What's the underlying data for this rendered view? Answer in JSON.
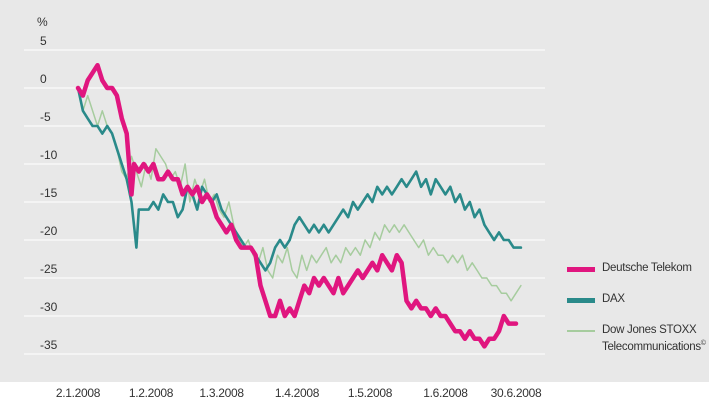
{
  "chart_data": {
    "type": "line",
    "ylabel": "%",
    "ylim": [
      -36,
      6
    ],
    "y_ticks": [
      5,
      0,
      -5,
      -10,
      -15,
      -20,
      -25,
      -30,
      -35
    ],
    "x_tick_labels": [
      "2.1.2008",
      "1.2.2008",
      "1.3.2008",
      "1.4.2008",
      "1.5.2008",
      "1.6.2008",
      "30.6.2008"
    ],
    "x_tick_days": [
      0,
      30,
      59,
      90,
      120,
      151,
      180
    ],
    "grid": true,
    "legend_position": "right",
    "series": [
      {
        "name": "Dow Jones STOXX Telecommunications",
        "label_superscript": "©",
        "color": "#a6cc9e",
        "values": [
          [
            0,
            0
          ],
          [
            2,
            -3
          ],
          [
            4,
            -1
          ],
          [
            6,
            -3
          ],
          [
            8,
            -5
          ],
          [
            10,
            -3
          ],
          [
            12,
            -5
          ],
          [
            14,
            -6
          ],
          [
            16,
            -8
          ],
          [
            18,
            -11
          ],
          [
            20,
            -12
          ],
          [
            22,
            -9
          ],
          [
            24,
            -11
          ],
          [
            26,
            -13
          ],
          [
            28,
            -10
          ],
          [
            30,
            -12
          ],
          [
            32,
            -8
          ],
          [
            34,
            -9
          ],
          [
            36,
            -10
          ],
          [
            38,
            -12
          ],
          [
            40,
            -11
          ],
          [
            42,
            -13
          ],
          [
            44,
            -10
          ],
          [
            46,
            -15
          ],
          [
            48,
            -12
          ],
          [
            50,
            -14
          ],
          [
            52,
            -12
          ],
          [
            54,
            -15
          ],
          [
            56,
            -14
          ],
          [
            58,
            -16
          ],
          [
            60,
            -17
          ],
          [
            62,
            -15
          ],
          [
            64,
            -18
          ],
          [
            66,
            -20
          ],
          [
            68,
            -21
          ],
          [
            70,
            -20
          ],
          [
            72,
            -22
          ],
          [
            74,
            -23
          ],
          [
            76,
            -21
          ],
          [
            78,
            -24
          ],
          [
            80,
            -25
          ],
          [
            82,
            -22
          ],
          [
            84,
            -23
          ],
          [
            86,
            -21
          ],
          [
            88,
            -24
          ],
          [
            90,
            -25
          ],
          [
            92,
            -22
          ],
          [
            94,
            -24
          ],
          [
            96,
            -22
          ],
          [
            98,
            -23
          ],
          [
            100,
            -22
          ],
          [
            102,
            -21
          ],
          [
            104,
            -23
          ],
          [
            106,
            -22
          ],
          [
            108,
            -23
          ],
          [
            110,
            -21
          ],
          [
            112,
            -22
          ],
          [
            114,
            -21
          ],
          [
            116,
            -22
          ],
          [
            118,
            -20
          ],
          [
            120,
            -21
          ],
          [
            122,
            -19
          ],
          [
            124,
            -20
          ],
          [
            126,
            -18
          ],
          [
            128,
            -19
          ],
          [
            130,
            -18
          ],
          [
            132,
            -19
          ],
          [
            134,
            -18
          ],
          [
            136,
            -19
          ],
          [
            138,
            -20
          ],
          [
            140,
            -21
          ],
          [
            142,
            -20
          ],
          [
            144,
            -22
          ],
          [
            146,
            -21
          ],
          [
            148,
            -22
          ],
          [
            150,
            -22
          ],
          [
            152,
            -23
          ],
          [
            154,
            -22
          ],
          [
            156,
            -23
          ],
          [
            158,
            -22
          ],
          [
            160,
            -24
          ],
          [
            162,
            -23
          ],
          [
            164,
            -24
          ],
          [
            166,
            -25
          ],
          [
            168,
            -25
          ],
          [
            170,
            -26
          ],
          [
            172,
            -26
          ],
          [
            174,
            -27
          ],
          [
            176,
            -27
          ],
          [
            178,
            -28
          ],
          [
            180,
            -27
          ],
          [
            182,
            -26
          ]
        ]
      },
      {
        "name": "DAX",
        "color": "#2a8a8a",
        "values": [
          [
            0,
            0
          ],
          [
            2,
            -3
          ],
          [
            4,
            -4
          ],
          [
            6,
            -5
          ],
          [
            8,
            -5
          ],
          [
            10,
            -6
          ],
          [
            12,
            -5
          ],
          [
            14,
            -6
          ],
          [
            16,
            -8
          ],
          [
            18,
            -10
          ],
          [
            20,
            -12
          ],
          [
            22,
            -15
          ],
          [
            24,
            -21
          ],
          [
            25,
            -16
          ],
          [
            27,
            -16
          ],
          [
            29,
            -16
          ],
          [
            31,
            -15
          ],
          [
            33,
            -16
          ],
          [
            35,
            -14
          ],
          [
            37,
            -15
          ],
          [
            39,
            -15
          ],
          [
            41,
            -17
          ],
          [
            43,
            -16
          ],
          [
            45,
            -13
          ],
          [
            47,
            -14
          ],
          [
            49,
            -16
          ],
          [
            51,
            -13
          ],
          [
            53,
            -14
          ],
          [
            55,
            -15
          ],
          [
            57,
            -14
          ],
          [
            59,
            -16
          ],
          [
            61,
            -17
          ],
          [
            63,
            -18
          ],
          [
            65,
            -19
          ],
          [
            67,
            -20
          ],
          [
            69,
            -21
          ],
          [
            71,
            -21
          ],
          [
            73,
            -22
          ],
          [
            75,
            -23
          ],
          [
            77,
            -24
          ],
          [
            79,
            -23
          ],
          [
            81,
            -21
          ],
          [
            83,
            -20
          ],
          [
            85,
            -21
          ],
          [
            87,
            -20
          ],
          [
            89,
            -18
          ],
          [
            91,
            -17
          ],
          [
            93,
            -18
          ],
          [
            95,
            -19
          ],
          [
            97,
            -18
          ],
          [
            99,
            -19
          ],
          [
            101,
            -18
          ],
          [
            103,
            -19
          ],
          [
            105,
            -18
          ],
          [
            107,
            -17
          ],
          [
            109,
            -16
          ],
          [
            111,
            -17
          ],
          [
            113,
            -15
          ],
          [
            115,
            -16
          ],
          [
            117,
            -15
          ],
          [
            119,
            -14
          ],
          [
            121,
            -15
          ],
          [
            123,
            -13
          ],
          [
            125,
            -14
          ],
          [
            127,
            -13
          ],
          [
            129,
            -14
          ],
          [
            131,
            -13
          ],
          [
            133,
            -12
          ],
          [
            135,
            -13
          ],
          [
            137,
            -12
          ],
          [
            139,
            -11
          ],
          [
            141,
            -13
          ],
          [
            143,
            -12
          ],
          [
            145,
            -14
          ],
          [
            147,
            -12
          ],
          [
            149,
            -13
          ],
          [
            151,
            -14
          ],
          [
            153,
            -13
          ],
          [
            155,
            -15
          ],
          [
            157,
            -14
          ],
          [
            159,
            -16
          ],
          [
            161,
            -15
          ],
          [
            163,
            -17
          ],
          [
            165,
            -16
          ],
          [
            167,
            -18
          ],
          [
            169,
            -19
          ],
          [
            171,
            -20
          ],
          [
            173,
            -19
          ],
          [
            175,
            -20
          ],
          [
            177,
            -20
          ],
          [
            179,
            -21
          ],
          [
            182,
            -21
          ]
        ]
      },
      {
        "name": "Deutsche Telekom",
        "color": "#e0167f",
        "values": [
          [
            0,
            0
          ],
          [
            2,
            -1
          ],
          [
            4,
            1
          ],
          [
            6,
            2
          ],
          [
            8,
            3
          ],
          [
            10,
            1
          ],
          [
            12,
            0
          ],
          [
            14,
            0
          ],
          [
            16,
            -1
          ],
          [
            18,
            -4
          ],
          [
            20,
            -6
          ],
          [
            22,
            -14
          ],
          [
            23,
            -10
          ],
          [
            25,
            -11
          ],
          [
            27,
            -10
          ],
          [
            29,
            -11
          ],
          [
            31,
            -10
          ],
          [
            33,
            -12
          ],
          [
            35,
            -12
          ],
          [
            37,
            -11
          ],
          [
            39,
            -12
          ],
          [
            41,
            -12
          ],
          [
            43,
            -14
          ],
          [
            45,
            -13
          ],
          [
            47,
            -14
          ],
          [
            49,
            -13
          ],
          [
            51,
            -15
          ],
          [
            53,
            -14
          ],
          [
            55,
            -15
          ],
          [
            57,
            -17
          ],
          [
            59,
            -18
          ],
          [
            61,
            -19
          ],
          [
            63,
            -18
          ],
          [
            65,
            -20
          ],
          [
            67,
            -21
          ],
          [
            69,
            -21
          ],
          [
            71,
            -21
          ],
          [
            73,
            -22
          ],
          [
            75,
            -26
          ],
          [
            77,
            -28
          ],
          [
            79,
            -30
          ],
          [
            81,
            -30
          ],
          [
            83,
            -28
          ],
          [
            85,
            -30
          ],
          [
            87,
            -29
          ],
          [
            89,
            -30
          ],
          [
            91,
            -28
          ],
          [
            93,
            -26
          ],
          [
            95,
            -27
          ],
          [
            97,
            -25
          ],
          [
            99,
            -26
          ],
          [
            101,
            -25
          ],
          [
            103,
            -26
          ],
          [
            105,
            -27
          ],
          [
            107,
            -25
          ],
          [
            109,
            -27
          ],
          [
            111,
            -26
          ],
          [
            113,
            -25
          ],
          [
            115,
            -24
          ],
          [
            117,
            -25
          ],
          [
            119,
            -24
          ],
          [
            121,
            -23
          ],
          [
            123,
            -24
          ],
          [
            125,
            -22
          ],
          [
            127,
            -23
          ],
          [
            129,
            -24
          ],
          [
            131,
            -22
          ],
          [
            133,
            -23
          ],
          [
            135,
            -28
          ],
          [
            137,
            -29
          ],
          [
            139,
            -28
          ],
          [
            141,
            -29
          ],
          [
            143,
            -29
          ],
          [
            145,
            -30
          ],
          [
            147,
            -29
          ],
          [
            149,
            -30
          ],
          [
            151,
            -30
          ],
          [
            153,
            -31
          ],
          [
            155,
            -32
          ],
          [
            157,
            -32
          ],
          [
            159,
            -33
          ],
          [
            161,
            -32
          ],
          [
            163,
            -33
          ],
          [
            165,
            -33
          ],
          [
            167,
            -34
          ],
          [
            169,
            -33
          ],
          [
            171,
            -33
          ],
          [
            173,
            -32
          ],
          [
            175,
            -30
          ],
          [
            177,
            -31
          ],
          [
            180,
            -31
          ]
        ]
      }
    ]
  },
  "legend": {
    "items": [
      {
        "label": "Deutsche Telekom",
        "color": "#e0167f"
      },
      {
        "label": "DAX",
        "color": "#2a8a8a"
      },
      {
        "label": "Dow Jones STOXX Telecommunications",
        "superscript": "©",
        "color": "#a6cc9e"
      }
    ]
  },
  "colors": {
    "panel": "#e8e8e8",
    "grid": "#ffffff",
    "text": "#333333"
  }
}
